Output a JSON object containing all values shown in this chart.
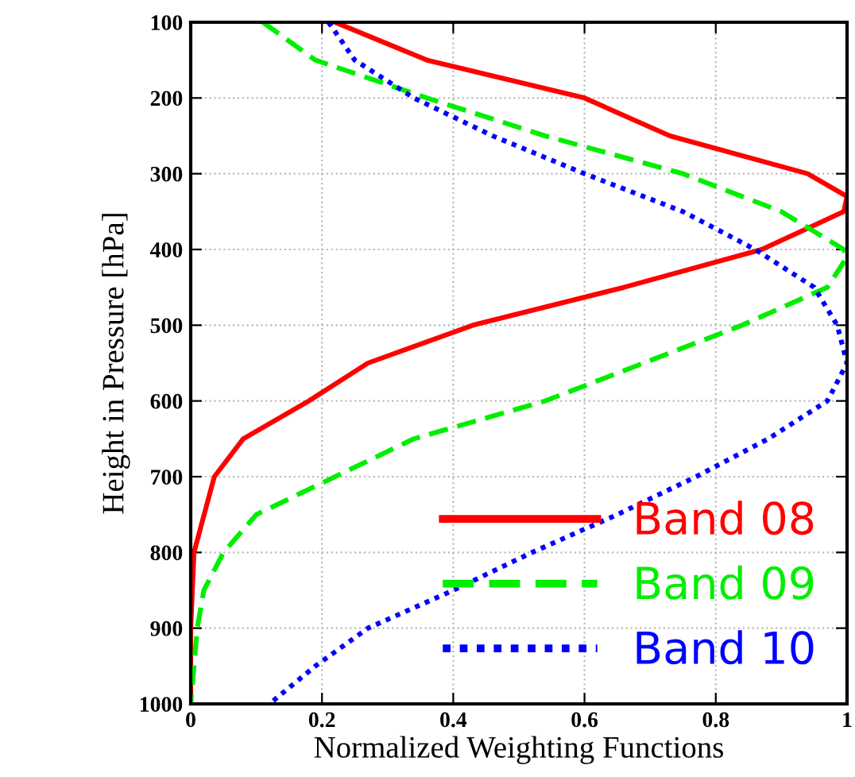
{
  "chart_data": {
    "type": "line",
    "xlabel": "Normalized Weighting Functions",
    "ylabel": "Height in Pressure [hPa]",
    "xlim": [
      0,
      1
    ],
    "ylim": [
      1000,
      100
    ],
    "xticks": [
      0,
      0.2,
      0.4,
      0.6,
      0.8,
      1
    ],
    "yticks": [
      100,
      200,
      300,
      400,
      500,
      600,
      700,
      800,
      900,
      1000
    ],
    "grid": true,
    "legend": "bottom right",
    "series": [
      {
        "name": "Band 08",
        "color": "#ff0000",
        "line_style": "solid",
        "x": [
          0.22,
          0.36,
          0.6,
          0.73,
          0.94,
          1.0,
          0.995,
          0.87,
          0.66,
          0.43,
          0.27,
          0.18,
          0.08,
          0.036,
          0.005,
          0,
          0
        ],
        "values": [
          100,
          150,
          200,
          250,
          300,
          330,
          350,
          400,
          450,
          500,
          550,
          600,
          650,
          700,
          800,
          900,
          1000
        ]
      },
      {
        "name": "Band 09",
        "color": "#00ee00",
        "line_style": "dashed",
        "x": [
          0.11,
          0.19,
          0.36,
          0.54,
          0.75,
          0.9,
          0.995,
          1.0,
          0.97,
          0.84,
          0.69,
          0.54,
          0.34,
          0.22,
          0.1,
          0.05,
          0.02,
          0.01,
          0
        ],
        "values": [
          100,
          150,
          200,
          250,
          300,
          350,
          400,
          410,
          450,
          500,
          550,
          600,
          650,
          700,
          750,
          800,
          850,
          900,
          1000
        ]
      },
      {
        "name": "Band 10",
        "color": "#0000ff",
        "line_style": "dotted",
        "x": [
          0.21,
          0.25,
          0.34,
          0.46,
          0.6,
          0.75,
          0.86,
          0.95,
          0.985,
          1.0,
          0.97,
          0.88,
          0.77,
          0.65,
          0.52,
          0.4,
          0.27,
          0.19,
          0.12
        ],
        "values": [
          100,
          150,
          200,
          250,
          300,
          350,
          400,
          450,
          500,
          550,
          600,
          650,
          700,
          750,
          800,
          850,
          900,
          950,
          1000
        ]
      }
    ]
  }
}
